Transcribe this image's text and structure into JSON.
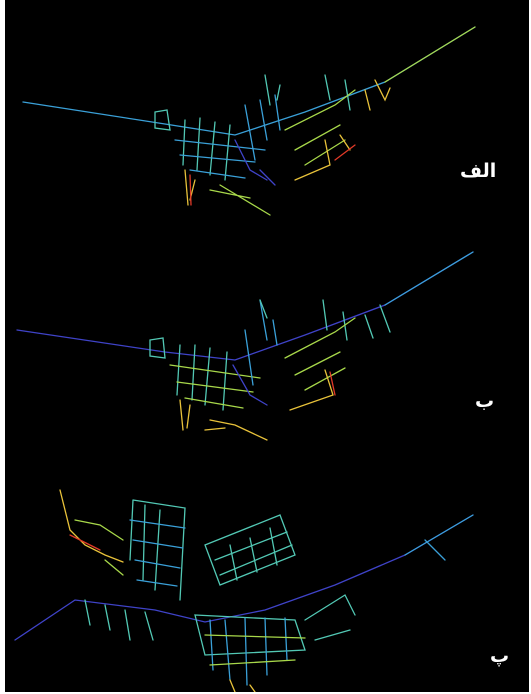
{
  "labels": {
    "panel_a": "الف",
    "panel_b": "ب",
    "panel_c": "پ"
  },
  "colors": {
    "background": "#000000",
    "low": "#3f43c8",
    "mid_low": "#3aa0d8",
    "mid": "#52c8b4",
    "mid_high": "#a8d84a",
    "high": "#e8c23a",
    "peak": "#e23a28"
  }
}
